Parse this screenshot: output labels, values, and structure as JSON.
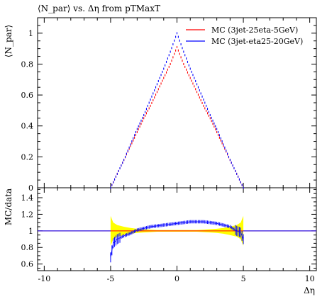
{
  "chart_data": {
    "type": "line",
    "title": "⟨N_par⟩ vs. Δη from pTMaxT",
    "ylabel": "⟨N_par⟩",
    "xlabel": "Δη",
    "ratio_ylabel": "MC/data",
    "xlim": [
      -10.5,
      10.5
    ],
    "ylim": [
      0,
      1.1
    ],
    "ratio_ylim": [
      0.52,
      1.52
    ],
    "x_ticks": [
      -10,
      -5,
      0,
      5,
      10
    ],
    "y_ticks": [
      0,
      0.2,
      0.4,
      0.6,
      0.8,
      1
    ],
    "ratio_y_ticks": [
      0.6,
      0.8,
      1,
      1.2,
      1.4
    ],
    "legend_position": "top-right",
    "series": [
      {
        "name": "MC (3jet-25eta-5GeV)",
        "color": "#ff0000",
        "x": [
          -5,
          -4.5,
          -4,
          -3.5,
          -3,
          -2.5,
          -2,
          -1.5,
          -1,
          -0.5,
          0,
          0.5,
          1,
          1.5,
          2,
          2.5,
          3,
          3.5,
          4,
          4.5,
          5
        ],
        "y": [
          0,
          0.09,
          0.18,
          0.27,
          0.36,
          0.45,
          0.53,
          0.62,
          0.71,
          0.8,
          0.91,
          0.8,
          0.71,
          0.62,
          0.53,
          0.45,
          0.36,
          0.27,
          0.18,
          0.09,
          0
        ]
      },
      {
        "name": "MC (3jet-eta25-20GeV)",
        "color": "#0000ff",
        "x": [
          -5,
          -4.5,
          -4,
          -3.5,
          -3,
          -2.5,
          -2,
          -1.5,
          -1,
          -0.5,
          0,
          0.5,
          1,
          1.5,
          2,
          2.5,
          3,
          3.5,
          4,
          4.5,
          5
        ],
        "y": [
          0,
          0.09,
          0.18,
          0.28,
          0.38,
          0.47,
          0.57,
          0.67,
          0.77,
          0.88,
          1.0,
          0.88,
          0.77,
          0.67,
          0.57,
          0.47,
          0.38,
          0.28,
          0.18,
          0.09,
          0
        ]
      }
    ],
    "ratio_series": [
      {
        "name": "MC (3jet-25eta-5GeV)",
        "color": "#ff0000",
        "x": [
          -10.5,
          10.5
        ],
        "y": [
          1.0,
          1.0
        ]
      },
      {
        "name": "MC (3jet-eta25-20GeV)",
        "color": "#0000ff",
        "x": [
          -5,
          -4.8,
          -4.5,
          -4,
          -3.5,
          -3,
          -2.5,
          -2,
          -1.5,
          -1,
          -0.5,
          0,
          0.5,
          1,
          1.5,
          2,
          2.5,
          3,
          3.5,
          4,
          4.5,
          4.8,
          5
        ],
        "y": [
          0.68,
          0.85,
          0.9,
          0.94,
          0.97,
          1.01,
          1.03,
          1.05,
          1.06,
          1.07,
          1.08,
          1.09,
          1.1,
          1.11,
          1.11,
          1.11,
          1.1,
          1.09,
          1.07,
          1.05,
          1.0,
          0.98,
          0.9
        ]
      }
    ],
    "data_band": {
      "color": "#ffff00",
      "x": [
        -5,
        -4.8,
        -4.5,
        -4,
        -3.5,
        -3,
        -2.5,
        -2,
        -1.5,
        -1,
        -0.5,
        0,
        0.5,
        1,
        1.5,
        2,
        2.5,
        3,
        3.5,
        4,
        4.5,
        4.8,
        5
      ],
      "lower": [
        0.82,
        0.9,
        0.93,
        0.95,
        0.965,
        0.975,
        0.98,
        0.985,
        0.99,
        0.99,
        0.99,
        0.99,
        0.99,
        0.99,
        0.99,
        0.985,
        0.98,
        0.975,
        0.965,
        0.95,
        0.93,
        0.9,
        0.82
      ],
      "upper": [
        1.18,
        1.1,
        1.07,
        1.05,
        1.035,
        1.025,
        1.02,
        1.015,
        1.01,
        1.01,
        1.01,
        1.01,
        1.01,
        1.01,
        1.01,
        1.015,
        1.02,
        1.025,
        1.035,
        1.05,
        1.07,
        1.1,
        1.18
      ]
    }
  }
}
